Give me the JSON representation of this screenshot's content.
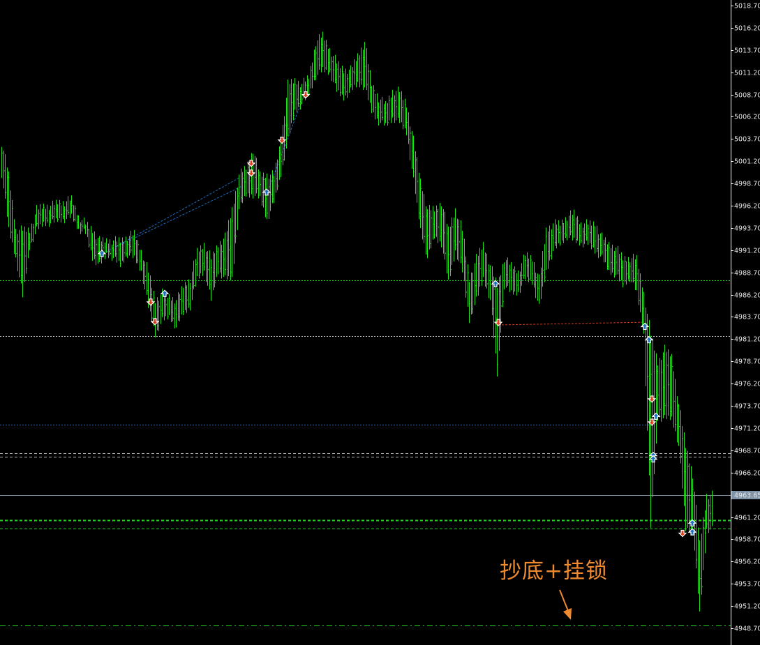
{
  "chart_data": {
    "type": "bar",
    "subtype": "ohlc-price-bars",
    "title": "",
    "xlabel": "",
    "ylabel": "",
    "ylim": [
      4947.9,
      5019.3
    ],
    "y_ticks": [
      "5018.70",
      "5016.20",
      "5013.70",
      "5011.20",
      "5008.70",
      "5006.20",
      "5003.70",
      "5001.20",
      "4998.70",
      "4996.20",
      "4993.70",
      "4991.20",
      "4988.70",
      "4986.20",
      "4983.70",
      "4981.20",
      "4978.70",
      "4976.20",
      "4973.70",
      "4971.20",
      "4968.70",
      "4966.20",
      "4963.65",
      "4961.20",
      "4958.70",
      "4956.20",
      "4953.70",
      "4951.20",
      "4948.70"
    ],
    "current_price": "4963.65",
    "grid": false,
    "bar_color": "#22e01c",
    "bars_high_low": [
      [
        5003.3,
        4999.7
      ],
      [
        4999.7,
        4993.5
      ],
      [
        4993.5,
        4990.3
      ],
      [
        4993.5,
        4986.0
      ],
      [
        4993.5,
        4991.5
      ],
      [
        4995.8,
        4993.5
      ],
      [
        4996.2,
        4994.2
      ],
      [
        4996.2,
        4994.2
      ],
      [
        4996.6,
        4994.6
      ],
      [
        4996.6,
        4994.6
      ],
      [
        4997.0,
        4995.0
      ],
      [
        4995.0,
        4993.5
      ],
      [
        4994.2,
        4993.1
      ],
      [
        4993.5,
        4990.3
      ],
      [
        4992.3,
        4989.5
      ],
      [
        4992.3,
        4990.7
      ],
      [
        4992.3,
        4990.3
      ],
      [
        4992.3,
        4989.5
      ],
      [
        4992.7,
        4990.7
      ],
      [
        4993.1,
        4990.3
      ],
      [
        4991.1,
        4988.8
      ],
      [
        4988.8,
        4984.8
      ],
      [
        4985.6,
        4981.7
      ],
      [
        4986.4,
        4983.3
      ],
      [
        4986.0,
        4983.7
      ],
      [
        4985.6,
        4982.5
      ],
      [
        4987.2,
        4984.1
      ],
      [
        4988.0,
        4984.8
      ],
      [
        4991.1,
        4988.0
      ],
      [
        4991.9,
        4988.8
      ],
      [
        4990.3,
        4985.6
      ],
      [
        4991.9,
        4988.8
      ],
      [
        4992.7,
        4988.0
      ],
      [
        4995.8,
        4988.0
      ],
      [
        4999.7,
        4995.8
      ],
      [
        5000.5,
        4997.4
      ],
      [
        5002.5,
        4997.4
      ],
      [
        4999.7,
        4997.0
      ],
      [
        4999.7,
        4994.6
      ],
      [
        4999.7,
        4996.6
      ],
      [
        5003.6,
        4999.7
      ],
      [
        5009.9,
        5003.6
      ],
      [
        5010.3,
        5006.8
      ],
      [
        5009.9,
        5007.6
      ],
      [
        5010.7,
        5008.7
      ],
      [
        5014.6,
        5010.7
      ],
      [
        5015.4,
        5011.5
      ],
      [
        5013.8,
        5011.1
      ],
      [
        5012.3,
        5009.1
      ],
      [
        5011.5,
        5008.3
      ],
      [
        5011.5,
        5009.1
      ],
      [
        5013.1,
        5009.9
      ],
      [
        5014.6,
        5009.5
      ],
      [
        5009.9,
        5006.8
      ],
      [
        5008.3,
        5005.6
      ],
      [
        5007.6,
        5005.2
      ],
      [
        5009.1,
        5006.0
      ],
      [
        5009.1,
        5005.6
      ],
      [
        5007.6,
        5004.4
      ],
      [
        5003.6,
        4999.0
      ],
      [
        4999.0,
        4993.5
      ],
      [
        4995.8,
        4990.3
      ],
      [
        4995.8,
        4992.7
      ],
      [
        4996.6,
        4991.9
      ],
      [
        4993.5,
        4987.6
      ],
      [
        4995.8,
        4991.1
      ],
      [
        4993.5,
        4988.8
      ],
      [
        4988.0,
        4983.3
      ],
      [
        4990.3,
        4985.6
      ],
      [
        4991.9,
        4988.0
      ],
      [
        4989.5,
        4985.6
      ],
      [
        4987.2,
        4977.2
      ],
      [
        4990.3,
        4987.2
      ],
      [
        4989.5,
        4986.4
      ],
      [
        4988.8,
        4986.4
      ],
      [
        4990.7,
        4988.0
      ],
      [
        4990.3,
        4987.6
      ],
      [
        4988.0,
        4984.8
      ],
      [
        4993.5,
        4988.8
      ],
      [
        4994.2,
        4991.1
      ],
      [
        4994.2,
        4991.9
      ],
      [
        4995.0,
        4992.7
      ],
      [
        4995.4,
        4992.3
      ],
      [
        4994.2,
        4991.9
      ],
      [
        4994.2,
        4991.9
      ],
      [
        4994.2,
        4991.1
      ],
      [
        4992.7,
        4990.3
      ],
      [
        4991.9,
        4988.8
      ],
      [
        4991.5,
        4988.4
      ],
      [
        4990.3,
        4987.2
      ],
      [
        4990.3,
        4988.0
      ],
      [
        4990.3,
        4986.4
      ],
      [
        4986.4,
        4981.7
      ],
      [
        4981.7,
        4960.1
      ],
      [
        4978.6,
        4972.3
      ],
      [
        4980.1,
        4972.3
      ],
      [
        4979.3,
        4972.3
      ],
      [
        4973.9,
        4969.2
      ],
      [
        4969.2,
        4959.8
      ],
      [
        4966.0,
        4959.8
      ],
      [
        4958.2,
        4950.3
      ],
      [
        4963.7,
        4959.8
      ]
    ],
    "horizontal_lines": [
      {
        "price": 4987.8,
        "color": "#22d41c",
        "style": "dotted"
      },
      {
        "price": 4981.55,
        "color": "#bdbdbd",
        "style": "dotted"
      },
      {
        "price": 4971.6,
        "color": "#1e6fc0",
        "style": "dotted",
        "end_bar": 93
      },
      {
        "price": 4968.4,
        "color": "#bdbdbd",
        "style": "dashed"
      },
      {
        "price": 4968.0,
        "color": "#bdbdbd",
        "style": "dashed"
      },
      {
        "price": 4963.65,
        "color": "#7f93a8",
        "style": "solid"
      },
      {
        "price": 4960.85,
        "color": "#22d41c",
        "style": "dashed-bold"
      },
      {
        "price": 4959.9,
        "color": "#22d41c",
        "style": "dashed"
      },
      {
        "price": 4949.0,
        "color": "#22d41c",
        "style": "dash-dot"
      }
    ],
    "trade_markers": [
      {
        "bar": 14.4,
        "price": 4990.8,
        "side": "buy"
      },
      {
        "bar": 21.4,
        "price": 4985.4,
        "side": "sell"
      },
      {
        "bar": 22.0,
        "price": 4983.2,
        "side": "sell"
      },
      {
        "bar": 23.4,
        "price": 4986.3,
        "side": "buy"
      },
      {
        "bar": 35.8,
        "price": 5001.0,
        "side": "sell"
      },
      {
        "bar": 35.8,
        "price": 4999.9,
        "side": "sell"
      },
      {
        "bar": 38.0,
        "price": 4997.7,
        "side": "buy"
      },
      {
        "bar": 40.2,
        "price": 5003.6,
        "side": "sell"
      },
      {
        "bar": 43.6,
        "price": 5008.7,
        "side": "sell"
      },
      {
        "bar": 70.8,
        "price": 4987.4,
        "side": "buy"
      },
      {
        "bar": 71.2,
        "price": 4983.1,
        "side": "sell"
      },
      {
        "bar": 92.2,
        "price": 4982.6,
        "side": "buy"
      },
      {
        "bar": 92.8,
        "price": 4981.1,
        "side": "buy"
      },
      {
        "bar": 93.2,
        "price": 4974.5,
        "side": "sell"
      },
      {
        "bar": 93.2,
        "price": 4971.9,
        "side": "sell"
      },
      {
        "bar": 93.8,
        "price": 4972.5,
        "side": "buy"
      },
      {
        "bar": 93.4,
        "price": 4968.1,
        "side": "buy"
      },
      {
        "bar": 93.4,
        "price": 4967.7,
        "side": "buy"
      },
      {
        "bar": 97.6,
        "price": 4959.4,
        "side": "sell"
      },
      {
        "bar": 99.0,
        "price": 4960.5,
        "side": "buy"
      },
      {
        "bar": 99.0,
        "price": 4959.5,
        "side": "buy"
      }
    ],
    "trade_links": [
      {
        "from": [
          15.0,
          4991.0
        ],
        "to": [
          34.0,
          4999.3
        ],
        "color": "#1e6fc0"
      },
      {
        "from": [
          16.5,
          4991.6
        ],
        "to": [
          34.5,
          4998.4
        ],
        "color": "#1e6fc0"
      },
      {
        "from": [
          38.5,
          4998.5
        ],
        "to": [
          43.2,
          5008.3
        ],
        "color": "#1e6fc0"
      },
      {
        "from": [
          71.2,
          4982.8
        ],
        "to": [
          92.0,
          4983.1
        ],
        "color": "#d23c1e"
      }
    ],
    "buy_color": "#1e6fc0",
    "sell_color": "#e0401e"
  },
  "annotation": {
    "text": "抄底+挂锁",
    "color": "#f08a2e"
  }
}
